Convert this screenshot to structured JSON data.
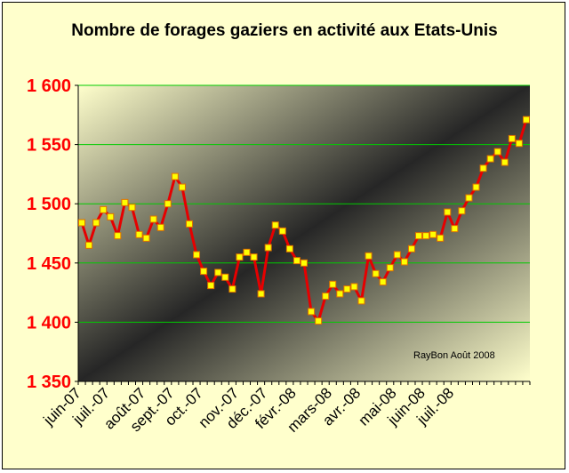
{
  "chart_data": {
    "type": "line",
    "title": "Nombre de forages gaziers en activité aux Etats-Unis",
    "annotation": "RayBon Août 2008",
    "xlabel": "",
    "ylabel": "",
    "ylim": [
      1350,
      1600
    ],
    "y_ticks": [
      1350,
      1400,
      1450,
      1500,
      1550,
      1600
    ],
    "y_tick_labels": [
      "1 350",
      "1 400",
      "1 450",
      "1 500",
      "1 550",
      "1 600"
    ],
    "x_tick_labels": [
      "juin-07",
      "juil.-07",
      "août-07",
      "sept.-07",
      "oct.-07",
      "nov.-07",
      "déc.-07",
      "févr.-08",
      "mars-08",
      "avr.-08",
      "mai-08",
      "juin-08",
      "juil.-08"
    ],
    "x_tick_index": [
      0,
      4,
      9,
      13,
      17,
      22,
      26,
      30,
      35,
      39,
      44,
      48,
      52
    ],
    "grid": true,
    "legend": "none",
    "colors": {
      "line": "#e60000",
      "marker_fill": "#ffff00",
      "marker_stroke": "#e07000",
      "grid": "#00cc00",
      "y_tick_label": "#ff0000",
      "x_tick_label": "#000000",
      "frame_background": "#ffffcc"
    },
    "series": [
      {
        "values": [
          1484,
          1465,
          1484,
          1495,
          1489,
          1473,
          1501,
          1497,
          1474,
          1471,
          1487,
          1480,
          1500,
          1523,
          1514,
          1483,
          1457,
          1443,
          1431,
          1442,
          1438,
          1428,
          1455,
          1459,
          1455,
          1424,
          1463,
          1482,
          1477,
          1462,
          1452,
          1450,
          1409,
          1401,
          1422,
          1432,
          1424,
          1428,
          1430,
          1418,
          1456,
          1441,
          1434,
          1446,
          1457,
          1451,
          1462,
          1473,
          1473,
          1474,
          1471,
          1493,
          1479,
          1494,
          1505,
          1514,
          1530,
          1538,
          1544,
          1535,
          1555,
          1551,
          1571
        ]
      }
    ]
  }
}
